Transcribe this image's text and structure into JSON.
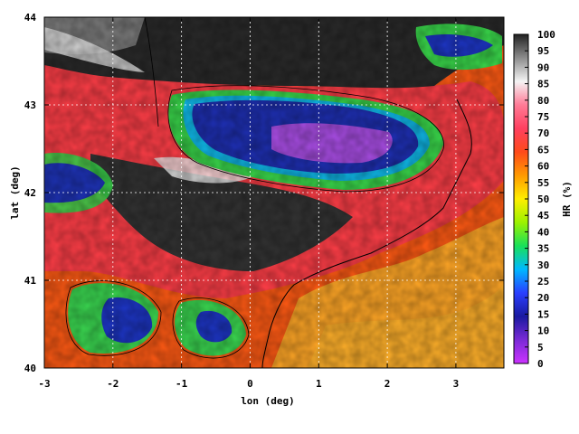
{
  "map": {
    "xlabel": "lon (deg)",
    "ylabel": "lat (deg)",
    "xlim": [
      -3,
      3.7
    ],
    "ylim": [
      40,
      44
    ],
    "xticks": [
      "-3",
      "-2",
      "-1",
      "0",
      "1",
      "2",
      "3"
    ],
    "yticks": [
      "40",
      "41",
      "42",
      "43",
      "44"
    ]
  },
  "colorbar": {
    "label": "HR (%)",
    "range": [
      0,
      100
    ],
    "ticks": [
      "0",
      "5",
      "10",
      "15",
      "20",
      "25",
      "30",
      "35",
      "40",
      "45",
      "50",
      "55",
      "60",
      "65",
      "70",
      "75",
      "80",
      "85",
      "90",
      "95",
      "100"
    ],
    "colors": [
      "#cc33ff",
      "#7a2ad6",
      "#1a1aa0",
      "#2a3fff",
      "#00b8ff",
      "#19e05a",
      "#9cf200",
      "#ffee00",
      "#ff9a00",
      "#ff4a1a",
      "#ff4060",
      "#ff7b96",
      "#f4f4f4",
      "#8c8c8c",
      "#222222"
    ]
  },
  "field_colors": {
    "sea": "#ff6a14",
    "sea_light": "#ffa020",
    "dry": "#333333",
    "moist": "#1c2fa8",
    "very_moist": "#a94fe0",
    "green": "#2ecf4a",
    "contour": "#000000"
  }
}
